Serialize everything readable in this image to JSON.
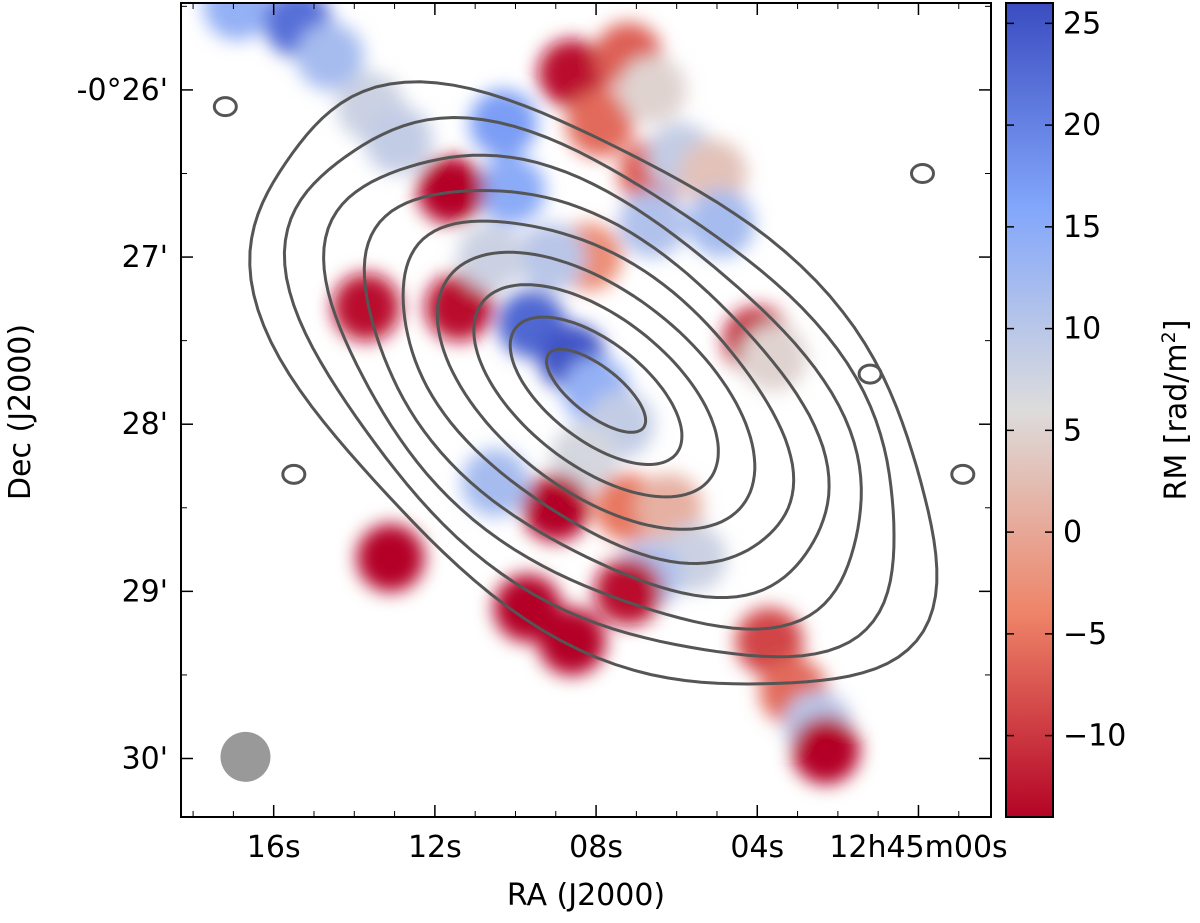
{
  "chart_data": {
    "type": "heatmap",
    "xlabel": "RA (J2000)",
    "ylabel": "Dec (J2000)",
    "x_ticks": [
      "16s",
      "12s",
      "08s",
      "04s",
      "12h45m00s"
    ],
    "y_ticks": [
      "-0°26'",
      "27'",
      "28'",
      "29'",
      "30'"
    ],
    "x_range_seconds": [
      18.3,
      -1.8
    ],
    "y_range_arcmin": [
      -25.48,
      -30.35
    ],
    "colorbar": {
      "label_prefix": "RM [rad/m",
      "label_sup": "2",
      "label_suffix": "]",
      "range": [
        -14,
        26
      ],
      "ticks": [
        "25",
        "20",
        "15",
        "10",
        "5",
        "0",
        "−5",
        "−10"
      ],
      "tick_values": [
        25,
        20,
        15,
        10,
        5,
        0,
        -5,
        -10
      ],
      "colormap": "coolwarm_r",
      "colors": [
        "#b40426",
        "#ee8468",
        "#dddcdc",
        "#82a6fb",
        "#3b4cc0"
      ]
    },
    "contours": {
      "color": "#555555",
      "levels": 9,
      "center_ra_s": 8.0,
      "center_dec_arcmin": -27.8,
      "position_angle_deg": 38
    },
    "beam": {
      "color": "#999999",
      "ra_s": 16.7,
      "dec_arcmin": -29.99
    },
    "rm_regions": [
      {
        "ra": 16.9,
        "dec": -25.5,
        "rm": 14
      },
      {
        "ra": 15.4,
        "dec": -25.6,
        "rm": 22
      },
      {
        "ra": 14.6,
        "dec": -25.8,
        "rm": 12
      },
      {
        "ra": 13.6,
        "dec": -26.1,
        "rm": 8
      },
      {
        "ra": 12.9,
        "dec": -26.3,
        "rm": 9
      },
      {
        "ra": 10.3,
        "dec": -26.2,
        "rm": 17
      },
      {
        "ra": 10.1,
        "dec": -26.6,
        "rm": 15
      },
      {
        "ra": 8.6,
        "dec": -25.9,
        "rm": -13
      },
      {
        "ra": 7.9,
        "dec": -26.2,
        "rm": -6
      },
      {
        "ra": 7.2,
        "dec": -25.8,
        "rm": -7
      },
      {
        "ra": 6.6,
        "dec": -26.0,
        "rm": 5
      },
      {
        "ra": 6.6,
        "dec": -26.5,
        "rm": -7
      },
      {
        "ra": 5.9,
        "dec": -26.4,
        "rm": 9
      },
      {
        "ra": 5.1,
        "dec": -26.5,
        "rm": 3
      },
      {
        "ra": 4.9,
        "dec": -26.8,
        "rm": 12
      },
      {
        "ra": 6.6,
        "dec": -26.8,
        "rm": 11
      },
      {
        "ra": 8.2,
        "dec": -27.0,
        "rm": -3
      },
      {
        "ra": 9.1,
        "dec": -27.0,
        "rm": 10
      },
      {
        "ra": 11.6,
        "dec": -26.6,
        "rm": -14
      },
      {
        "ra": 13.7,
        "dec": -27.3,
        "rm": -13
      },
      {
        "ra": 11.4,
        "dec": -27.3,
        "rm": -13
      },
      {
        "ra": 10.6,
        "dec": -27.0,
        "rm": 8
      },
      {
        "ra": 9.6,
        "dec": -27.4,
        "rm": 23
      },
      {
        "ra": 8.6,
        "dec": -27.6,
        "rm": 25
      },
      {
        "ra": 8.0,
        "dec": -27.8,
        "rm": 14
      },
      {
        "ra": 7.4,
        "dec": -28.0,
        "rm": 9
      },
      {
        "ra": 8.3,
        "dec": -28.2,
        "rm": 7
      },
      {
        "ra": 7.2,
        "dec": -28.5,
        "rm": -5
      },
      {
        "ra": 6.2,
        "dec": -28.5,
        "rm": 1
      },
      {
        "ra": 5.6,
        "dec": -28.8,
        "rm": 8
      },
      {
        "ra": 6.7,
        "dec": -28.9,
        "rm": 11
      },
      {
        "ra": 4.0,
        "dec": -27.5,
        "rm": -12
      },
      {
        "ra": 3.6,
        "dec": -27.6,
        "rm": 5
      },
      {
        "ra": 9.0,
        "dec": -28.5,
        "rm": -14
      },
      {
        "ra": 9.7,
        "dec": -29.1,
        "rm": -14
      },
      {
        "ra": 8.6,
        "dec": -29.3,
        "rm": -14
      },
      {
        "ra": 7.2,
        "dec": -29.0,
        "rm": -13
      },
      {
        "ra": 3.7,
        "dec": -29.3,
        "rm": -9
      },
      {
        "ra": 3.1,
        "dec": -29.6,
        "rm": -6
      },
      {
        "ra": 2.5,
        "dec": -29.8,
        "rm": 10
      },
      {
        "ra": 2.3,
        "dec": -29.95,
        "rm": -14
      },
      {
        "ra": 10.5,
        "dec": -28.35,
        "rm": 12
      },
      {
        "ra": 13.1,
        "dec": -28.8,
        "rm": -14
      }
    ]
  }
}
